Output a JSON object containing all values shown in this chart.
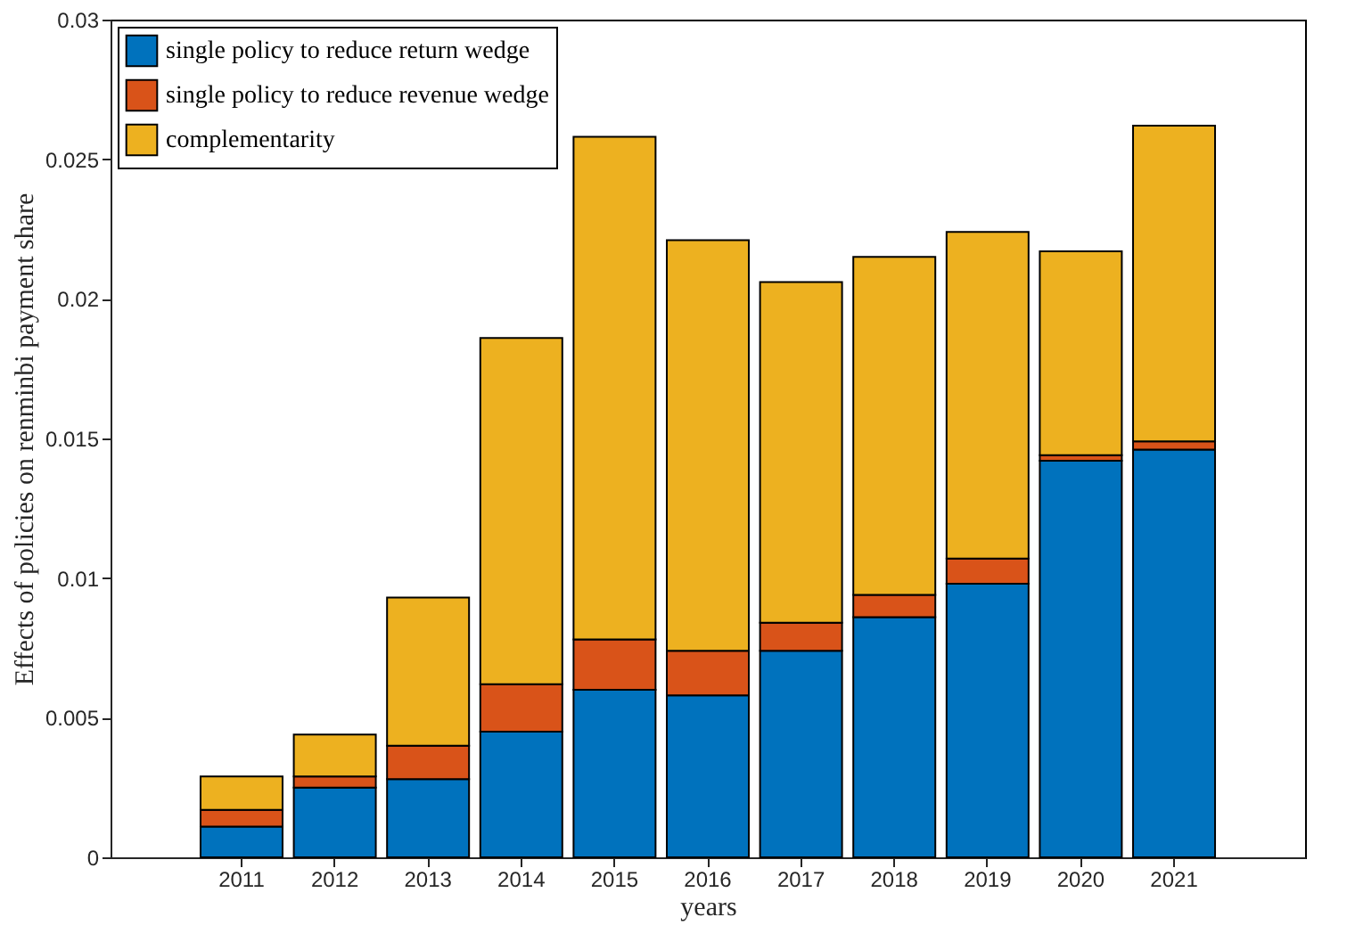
{
  "chart_data": {
    "type": "bar",
    "stacked": true,
    "xlabel": "years",
    "ylabel": "Effects of policies on renminbi payment share",
    "categories": [
      "2011",
      "2012",
      "2013",
      "2014",
      "2015",
      "2016",
      "2017",
      "2018",
      "2019",
      "2020",
      "2021"
    ],
    "series": [
      {
        "name": "single policy to reduce return wedge",
        "color": "#0072bd",
        "values": [
          0.0011,
          0.0025,
          0.0028,
          0.0045,
          0.006,
          0.0058,
          0.0074,
          0.0086,
          0.0098,
          0.0142,
          0.0146
        ]
      },
      {
        "name": "single policy to reduce revenue wedge",
        "color": "#d95319",
        "values": [
          0.0006,
          0.0004,
          0.0012,
          0.0017,
          0.0018,
          0.0016,
          0.001,
          0.0008,
          0.0009,
          0.0002,
          0.0003
        ]
      },
      {
        "name": "complementarity",
        "color": "#edb120",
        "values": [
          0.0012,
          0.0015,
          0.0053,
          0.0124,
          0.018,
          0.0147,
          0.0122,
          0.0121,
          0.0117,
          0.0073,
          0.0113
        ]
      }
    ],
    "ylim": [
      0,
      0.03
    ],
    "yticks": [
      0,
      0.005,
      0.01,
      0.015,
      0.02,
      0.025,
      0.03
    ],
    "grid": false,
    "legend": "top left"
  }
}
